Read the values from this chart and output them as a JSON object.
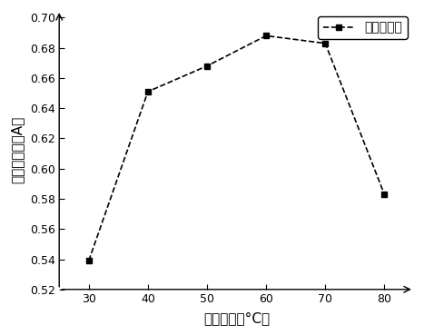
{
  "x": [
    30,
    40,
    50,
    60,
    70,
    80
  ],
  "y": [
    0.539,
    0.651,
    0.668,
    0.688,
    0.683,
    0.583
  ],
  "xlim": [
    25,
    85
  ],
  "ylim": [
    0.52,
    0.705
  ],
  "xticks": [
    30,
    40,
    50,
    60,
    70,
    80
  ],
  "yticks": [
    0.52,
    0.54,
    0.56,
    0.58,
    0.6,
    0.62,
    0.64,
    0.66,
    0.68,
    0.7
  ],
  "xlabel": "提取温度（°C）",
  "ylabel": "韭黄吸光度（A）",
  "legend_label": "韭黄吸光度",
  "line_color": "#000000",
  "marker": "s",
  "marker_size": 5,
  "line_style": "--",
  "line_width": 1.2,
  "background_color": "#ffffff",
  "tick_labelsize": 9,
  "xlabel_fontsize": 11,
  "ylabel_fontsize": 11,
  "legend_fontsize": 10
}
